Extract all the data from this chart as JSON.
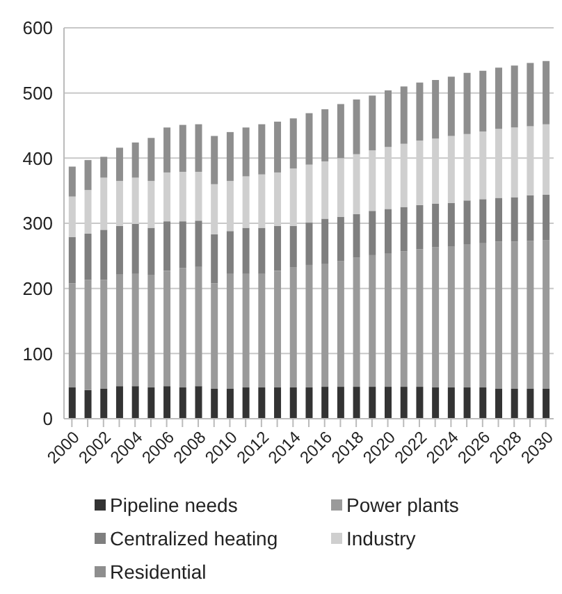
{
  "chart_data": {
    "type": "bar",
    "stacked": true,
    "categories": [
      "2000",
      null,
      "2002",
      null,
      "2004",
      null,
      "2006",
      null,
      "2008",
      null,
      "2010",
      null,
      "2012",
      null,
      "2014",
      null,
      "2016",
      null,
      "2018",
      null,
      "2020",
      null,
      "2022",
      null,
      "2024",
      null,
      "2026",
      null,
      "2028",
      null,
      "2030"
    ],
    "series": [
      {
        "name": "Pipeline needs",
        "color": "#333333",
        "values": [
          48,
          44,
          46,
          50,
          50,
          48,
          50,
          48,
          50,
          46,
          46,
          48,
          48,
          48,
          48,
          48,
          49,
          49,
          49,
          49,
          49,
          49,
          49,
          48,
          48,
          48,
          48,
          46,
          46,
          46,
          46
        ]
      },
      {
        "name": "Power plants",
        "color": "#9a9a9a",
        "values": [
          160,
          169,
          167,
          172,
          173,
          173,
          177,
          183,
          183,
          162,
          177,
          175,
          175,
          179,
          184,
          188,
          189,
          193,
          198,
          202,
          205,
          208,
          211,
          215,
          216,
          220,
          222,
          226,
          226,
          227,
          228
        ]
      },
      {
        "name": "Centralized heating",
        "color": "#7f7f7f",
        "values": [
          71,
          71,
          77,
          74,
          76,
          72,
          76,
          72,
          71,
          75,
          65,
          70,
          70,
          69,
          64,
          65,
          69,
          68,
          67,
          68,
          68,
          68,
          68,
          67,
          67,
          67,
          67,
          67,
          68,
          70,
          70
        ]
      },
      {
        "name": "Industry",
        "color": "#cfcfcf",
        "values": [
          62,
          67,
          80,
          69,
          71,
          72,
          75,
          76,
          75,
          77,
          77,
          79,
          82,
          82,
          88,
          89,
          88,
          90,
          92,
          93,
          95,
          97,
          99,
          100,
          103,
          102,
          104,
          106,
          107,
          106,
          108
        ]
      },
      {
        "name": "Residential",
        "color": "#8e8e8e",
        "values": [
          46,
          46,
          32,
          51,
          54,
          66,
          69,
          72,
          73,
          74,
          75,
          75,
          77,
          78,
          77,
          79,
          80,
          83,
          84,
          84,
          87,
          88,
          89,
          90,
          91,
          94,
          93,
          94,
          95,
          97,
          97
        ]
      }
    ],
    "ylim": [
      0,
      600
    ],
    "yticks": [
      0,
      100,
      200,
      300,
      400,
      500,
      600
    ],
    "grid": "y",
    "legend": "bottom"
  }
}
